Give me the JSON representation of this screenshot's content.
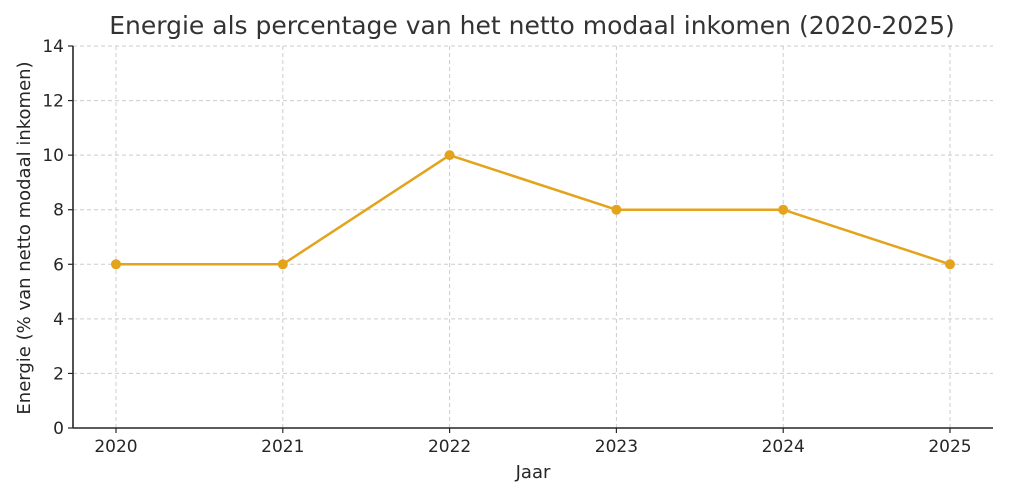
{
  "chart_data": {
    "type": "line",
    "title": "Energie als percentage van het netto modaal inkomen (2020-2025)",
    "xlabel": "Jaar",
    "ylabel": "Energie (% van netto modaal inkomen)",
    "categories": [
      "2020",
      "2021",
      "2022",
      "2023",
      "2024",
      "2025"
    ],
    "series": [
      {
        "name": "Energie (% van netto modaal inkomen)",
        "values": [
          6,
          6,
          10,
          8,
          8,
          6
        ],
        "color": "#E3A31B",
        "marker": "circle"
      }
    ],
    "ylim": [
      0,
      14
    ],
    "yticks": [
      0,
      2,
      4,
      6,
      8,
      10,
      12,
      14
    ],
    "grid": true,
    "legend": null
  }
}
